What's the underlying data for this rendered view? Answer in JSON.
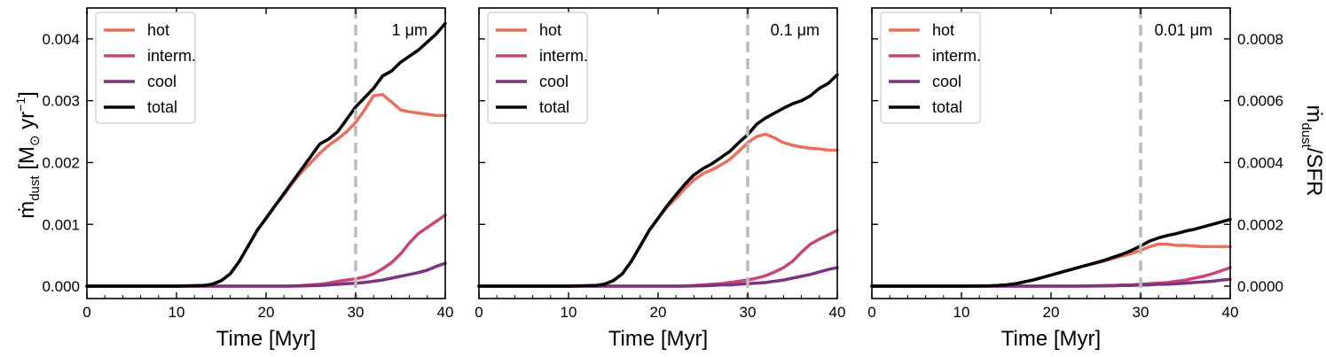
{
  "figure": {
    "ylabel_left": "ṁ",
    "ylabel_left_sub": "dust",
    "ylabel_left_unit": " [M",
    "ylabel_left_sun": "⊙",
    "ylabel_left_yr": " yr",
    "ylabel_left_exp": "−1",
    "ylabel_left_close": "]",
    "ylabel_right": "ṁ",
    "ylabel_right_sub": "dust",
    "ylabel_right_rest": "/SFR",
    "right_axis_ticks": [
      "0.0000",
      "0.0002",
      "0.0004",
      "0.0006",
      "0.0008"
    ],
    "right_axis_values": [
      0,
      0.0002,
      0.0004,
      0.0006,
      0.0008
    ],
    "right_axis_ylim": [
      -4e-05,
      0.0009
    ]
  },
  "colors": {
    "hot": "#e8715e",
    "interm": "#c9467a",
    "cool": "#7d3480",
    "total": "#000000",
    "refline": "#bbbbbb"
  },
  "chart_data": [
    {
      "type": "line",
      "panel_label": "1 μm",
      "xlabel": "Time [Myr]",
      "xlim": [
        0,
        40
      ],
      "ylim": [
        -0.0002,
        0.0045
      ],
      "xticks": [
        "0",
        "10",
        "20",
        "30",
        "40"
      ],
      "yticks": [
        "0.000",
        "0.001",
        "0.002",
        "0.003",
        "0.004"
      ],
      "vline_x": 30,
      "legend": [
        "hot",
        "interm.",
        "cool",
        "total"
      ],
      "x": [
        0,
        5,
        10,
        13,
        14,
        15,
        16,
        17,
        18,
        19,
        20,
        21,
        22,
        23,
        24,
        25,
        26,
        27,
        28,
        29,
        30,
        31,
        32,
        33,
        34,
        35,
        36,
        37,
        38,
        39,
        40
      ],
      "series": [
        {
          "name": "hot",
          "values": [
            0,
            0,
            0,
            1e-05,
            3e-05,
            9e-05,
            0.0002,
            0.0004,
            0.00065,
            0.0009,
            0.0011,
            0.0013,
            0.00148,
            0.00168,
            0.00185,
            0.002,
            0.00215,
            0.00228,
            0.00238,
            0.0025,
            0.00265,
            0.00285,
            0.00308,
            0.0031,
            0.00298,
            0.00285,
            0.00282,
            0.0028,
            0.00278,
            0.00276,
            0.00276
          ]
        },
        {
          "name": "interm.",
          "values": [
            0,
            0,
            0,
            0,
            0,
            0,
            0,
            0,
            0,
            0,
            0,
            0,
            0,
            5e-06,
            1e-05,
            2e-05,
            3e-05,
            5e-05,
            8e-05,
            0.0001,
            0.00012,
            0.00015,
            0.0002,
            0.00028,
            0.00038,
            0.00052,
            0.0007,
            0.00085,
            0.00095,
            0.00105,
            0.00115
          ]
        },
        {
          "name": "cool",
          "values": [
            0,
            0,
            0,
            0,
            0,
            0,
            0,
            0,
            0,
            0,
            0,
            0,
            0,
            0,
            3e-06,
            8e-06,
            1e-05,
            2e-05,
            3e-05,
            4e-05,
            5e-05,
            6e-05,
            8e-05,
            0.0001,
            0.00013,
            0.00016,
            0.00019,
            0.00022,
            0.00026,
            0.00032,
            0.00037
          ]
        },
        {
          "name": "total",
          "values": [
            0,
            0,
            0,
            1e-05,
            3e-05,
            9e-05,
            0.0002,
            0.0004,
            0.00065,
            0.0009,
            0.0011,
            0.0013,
            0.0015,
            0.0017,
            0.0019,
            0.0021,
            0.0023,
            0.00238,
            0.0025,
            0.0027,
            0.0029,
            0.00305,
            0.0032,
            0.0034,
            0.00348,
            0.00362,
            0.00372,
            0.00382,
            0.00395,
            0.00408,
            0.00425
          ]
        }
      ]
    },
    {
      "type": "line",
      "panel_label": "0.1 μm",
      "xlabel": "Time [Myr]",
      "xlim": [
        0,
        40
      ],
      "ylim": [
        -0.0002,
        0.0045
      ],
      "xticks": [
        "0",
        "10",
        "20",
        "30",
        "40"
      ],
      "yticks": [],
      "vline_x": 30,
      "legend": [
        "hot",
        "interm.",
        "cool",
        "total"
      ],
      "x": [
        0,
        5,
        10,
        13,
        14,
        15,
        16,
        17,
        18,
        19,
        20,
        21,
        22,
        23,
        24,
        25,
        26,
        27,
        28,
        29,
        30,
        31,
        32,
        33,
        34,
        35,
        36,
        37,
        38,
        39,
        40
      ],
      "series": [
        {
          "name": "hot",
          "values": [
            0,
            0,
            0,
            1e-05,
            3e-05,
            9e-05,
            0.0002,
            0.0004,
            0.00065,
            0.0009,
            0.0011,
            0.00128,
            0.00142,
            0.00158,
            0.00172,
            0.00182,
            0.00188,
            0.00196,
            0.00205,
            0.00218,
            0.00232,
            0.00242,
            0.00246,
            0.0024,
            0.00232,
            0.00228,
            0.00225,
            0.00223,
            0.00222,
            0.0022,
            0.0022
          ]
        },
        {
          "name": "interm.",
          "values": [
            0,
            0,
            0,
            0,
            0,
            0,
            0,
            0,
            0,
            0,
            0,
            0,
            0,
            5e-06,
            1e-05,
            2e-05,
            3e-05,
            4e-05,
            6e-05,
            8e-05,
            0.0001,
            0.00013,
            0.00017,
            0.00023,
            0.0003,
            0.0004,
            0.00055,
            0.00068,
            0.00076,
            0.00083,
            0.0009
          ]
        },
        {
          "name": "cool",
          "values": [
            0,
            0,
            0,
            0,
            0,
            0,
            0,
            0,
            0,
            0,
            0,
            0,
            0,
            0,
            3e-06,
            6e-06,
            1e-05,
            2e-05,
            2e-05,
            3e-05,
            4e-05,
            5e-05,
            6e-05,
            8e-05,
            0.0001,
            0.00013,
            0.00016,
            0.00019,
            0.00023,
            0.00027,
            0.0003
          ]
        },
        {
          "name": "total",
          "values": [
            0,
            0,
            0,
            1e-05,
            3e-05,
            9e-05,
            0.0002,
            0.0004,
            0.00065,
            0.0009,
            0.0011,
            0.0013,
            0.00148,
            0.00165,
            0.0018,
            0.0019,
            0.00198,
            0.00208,
            0.00218,
            0.00232,
            0.00245,
            0.00262,
            0.00272,
            0.0028,
            0.00288,
            0.00295,
            0.003,
            0.00308,
            0.0032,
            0.00328,
            0.00342
          ]
        }
      ]
    },
    {
      "type": "line",
      "panel_label": "0.01 μm",
      "xlabel": "Time [Myr]",
      "xlim": [
        0,
        40
      ],
      "ylim": [
        -0.0002,
        0.0045
      ],
      "xticks": [
        "0",
        "10",
        "20",
        "30",
        "40"
      ],
      "yticks": [],
      "vline_x": 30,
      "legend": [
        "hot",
        "interm.",
        "cool",
        "total"
      ],
      "x": [
        0,
        5,
        10,
        13,
        14,
        15,
        16,
        17,
        18,
        19,
        20,
        21,
        22,
        23,
        24,
        25,
        26,
        27,
        28,
        29,
        30,
        31,
        32,
        33,
        34,
        35,
        36,
        37,
        38,
        39,
        40
      ],
      "series": [
        {
          "name": "hot",
          "values": [
            0,
            0,
            0,
            5e-06,
            1e-05,
            2e-05,
            4e-05,
            7e-05,
            0.0001,
            0.00014,
            0.00018,
            0.00022,
            0.00026,
            0.0003,
            0.00034,
            0.00037,
            0.00041,
            0.00045,
            0.00049,
            0.00053,
            0.00058,
            0.00064,
            0.00068,
            0.00068,
            0.00066,
            0.00066,
            0.00065,
            0.00064,
            0.00064,
            0.00064,
            0.00064
          ]
        },
        {
          "name": "interm.",
          "values": [
            0,
            0,
            0,
            0,
            0,
            0,
            0,
            0,
            0,
            0,
            0,
            0,
            0,
            0,
            3e-06,
            6e-06,
            1e-05,
            1e-05,
            2e-05,
            2e-05,
            3e-05,
            4e-05,
            5e-05,
            6e-05,
            8e-05,
            0.0001,
            0.00013,
            0.00016,
            0.0002,
            0.00025,
            0.0003
          ]
        },
        {
          "name": "cool",
          "values": [
            0,
            0,
            0,
            0,
            0,
            0,
            0,
            0,
            0,
            0,
            0,
            0,
            0,
            0,
            0,
            2e-06,
            4e-06,
            6e-06,
            1e-05,
            1e-05,
            2e-05,
            2e-05,
            3e-05,
            3e-05,
            4e-05,
            5e-05,
            6e-05,
            7e-05,
            8e-05,
            0.0001,
            0.00011
          ]
        },
        {
          "name": "total",
          "values": [
            0,
            0,
            0,
            5e-06,
            1e-05,
            2e-05,
            4e-05,
            7e-05,
            0.0001,
            0.00014,
            0.00018,
            0.00022,
            0.00026,
            0.0003,
            0.00034,
            0.00038,
            0.00042,
            0.00047,
            0.00052,
            0.00058,
            0.00065,
            0.00073,
            0.00078,
            0.00082,
            0.00085,
            0.00089,
            0.00092,
            0.00096,
            0.001,
            0.00104,
            0.00108
          ]
        }
      ]
    }
  ]
}
